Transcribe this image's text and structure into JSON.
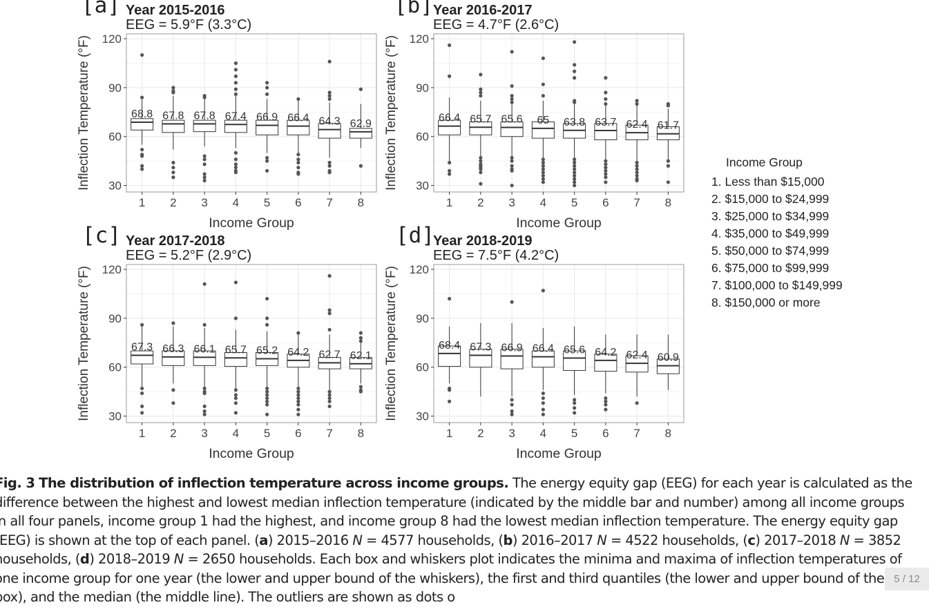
{
  "chart_data": [
    {
      "type": "box",
      "panel_label": "[a]",
      "title": "Year 2015-2016",
      "subtitle": "EEG = 5.9°F (3.3°C)",
      "xlabel": "Income Group",
      "ylabel": "Inflection Temperature (°F)",
      "ylim": [
        26,
        123
      ],
      "yticks": [
        30,
        60,
        90,
        120
      ],
      "categories": [
        "1",
        "2",
        "3",
        "4",
        "5",
        "6",
        "7",
        "8"
      ],
      "grid": true,
      "medians": [
        68.8,
        67.8,
        67.8,
        67.4,
        66.9,
        66.4,
        64.3,
        62.9
      ],
      "median_labels": [
        "68.8",
        "67.8",
        "67.8",
        "67.4",
        "66.9",
        "66.4",
        "64.3",
        "62.9"
      ],
      "boxes": [
        {
          "min": 55,
          "q1": 64,
          "q3": 71,
          "max": 84,
          "outliers": [
            110,
            84,
            52,
            49,
            48,
            42,
            40
          ]
        },
        {
          "min": 52,
          "q1": 62.5,
          "q3": 70,
          "max": 85,
          "outliers": [
            90,
            88,
            87,
            44,
            41,
            38,
            35
          ]
        },
        {
          "min": 54,
          "q1": 63,
          "q3": 70,
          "max": 84,
          "outliers": [
            85,
            84,
            48,
            46,
            43,
            37,
            35,
            33
          ]
        },
        {
          "min": 53,
          "q1": 62.5,
          "q3": 70,
          "max": 85,
          "outliers": [
            105,
            101,
            97,
            93,
            89,
            86,
            50,
            46,
            43,
            41,
            39,
            38
          ]
        },
        {
          "min": 50,
          "q1": 61,
          "q3": 70,
          "max": 83,
          "outliers": [
            93,
            90,
            86,
            47,
            45,
            39
          ]
        },
        {
          "min": 50,
          "q1": 61,
          "q3": 70,
          "max": 82,
          "outliers": [
            83,
            49,
            46,
            44,
            41,
            38,
            37
          ]
        },
        {
          "min": 47,
          "q1": 59,
          "q3": 68,
          "max": 81,
          "outliers": [
            106,
            87,
            85,
            83,
            44,
            42,
            39,
            38
          ]
        },
        {
          "min": 53,
          "q1": 59,
          "q3": 65,
          "max": 80,
          "outliers": [
            89,
            42
          ]
        }
      ]
    },
    {
      "type": "box",
      "panel_label": "[b]",
      "title": "Year 2016-2017",
      "subtitle": "EEG = 4.7°F (2.6°C)",
      "xlabel": "Income Group",
      "ylabel": "Inflection Temperature (°F)",
      "ylim": [
        26,
        123
      ],
      "yticks": [
        30,
        60,
        90,
        120
      ],
      "categories": [
        "1",
        "2",
        "3",
        "4",
        "5",
        "6",
        "7",
        "8"
      ],
      "grid": true,
      "medians": [
        66.4,
        65.7,
        65.6,
        65,
        63.8,
        63.7,
        62.4,
        61.7
      ],
      "median_labels": [
        "66.4",
        "65.7",
        "65.6",
        "65",
        "63.8",
        "63.7",
        "62.4",
        "61.7"
      ],
      "boxes": [
        {
          "min": 45,
          "q1": 61,
          "q3": 70,
          "max": 84,
          "outliers": [
            116,
            97,
            44,
            39,
            37
          ]
        },
        {
          "min": 48,
          "q1": 61,
          "q3": 69,
          "max": 82,
          "outliers": [
            98,
            89,
            87,
            85,
            47,
            45,
            43,
            42,
            41,
            40,
            38,
            31
          ]
        },
        {
          "min": 47,
          "q1": 60,
          "q3": 69,
          "max": 82,
          "outliers": [
            112,
            91,
            85,
            83,
            81,
            47,
            45,
            42,
            40,
            39,
            30
          ]
        },
        {
          "min": 46,
          "q1": 59,
          "q3": 69,
          "max": 82,
          "outliers": [
            108,
            92,
            85,
            46,
            44,
            42,
            40,
            38,
            36,
            34,
            32
          ]
        },
        {
          "min": 46,
          "q1": 59,
          "q3": 68,
          "max": 80,
          "outliers": [
            118,
            104,
            100,
            96,
            82,
            81,
            46,
            44,
            42,
            40,
            38,
            36,
            34,
            32,
            30
          ]
        },
        {
          "min": 45,
          "q1": 58,
          "q3": 68,
          "max": 80,
          "outliers": [
            96,
            87,
            83,
            80,
            45,
            43,
            41,
            39,
            37,
            35,
            32
          ]
        },
        {
          "min": 44,
          "q1": 58,
          "q3": 67,
          "max": 80,
          "outliers": [
            82,
            80,
            44,
            42,
            40,
            38,
            36,
            34,
            33
          ]
        },
        {
          "min": 45,
          "q1": 58,
          "q3": 66,
          "max": 77,
          "outliers": [
            80,
            79,
            45,
            42,
            32
          ]
        }
      ]
    },
    {
      "type": "box",
      "panel_label": "[c]",
      "title": "Year 2017-2018",
      "subtitle": "EEG = 5.2°F (2.9°C)",
      "xlabel": "Income Group",
      "ylabel": "Inflection Temperature (°F)",
      "ylim": [
        26,
        123
      ],
      "yticks": [
        30,
        60,
        90,
        120
      ],
      "categories": [
        "1",
        "2",
        "3",
        "4",
        "5",
        "6",
        "7",
        "8"
      ],
      "grid": true,
      "medians": [
        67.3,
        66.3,
        66.1,
        65.7,
        65.2,
        64.2,
        62.7,
        62.1
      ],
      "median_labels": [
        "67.3",
        "66.3",
        "66.1",
        "65.7",
        "65.2",
        "64.2",
        "62.7",
        "62.1"
      ],
      "boxes": [
        {
          "min": 48,
          "q1": 62,
          "q3": 70,
          "max": 85,
          "outliers": [
            86,
            47,
            44,
            36,
            32
          ]
        },
        {
          "min": 50,
          "q1": 61,
          "q3": 70,
          "max": 85,
          "outliers": [
            87,
            46,
            38
          ]
        },
        {
          "min": 48,
          "q1": 61,
          "q3": 70,
          "max": 84,
          "outliers": [
            111,
            86,
            47,
            45,
            44,
            36,
            33,
            31
          ]
        },
        {
          "min": 47,
          "q1": 60.5,
          "q3": 69,
          "max": 83,
          "outliers": [
            112,
            90,
            46,
            43,
            41,
            38,
            32
          ]
        },
        {
          "min": 47,
          "q1": 61,
          "q3": 69,
          "max": 82,
          "outliers": [
            102,
            90,
            86,
            47,
            45,
            43,
            41,
            39,
            37,
            31
          ]
        },
        {
          "min": 48,
          "q1": 60,
          "q3": 68,
          "max": 80,
          "outliers": [
            81,
            47,
            45,
            43,
            41,
            39,
            37,
            34,
            31
          ]
        },
        {
          "min": 46,
          "q1": 59,
          "q3": 66,
          "max": 80,
          "outliers": [
            116,
            95,
            93,
            83,
            45,
            43,
            41,
            39,
            36
          ]
        },
        {
          "min": 50,
          "q1": 59,
          "q3": 66,
          "max": 75,
          "outliers": [
            81,
            78,
            76,
            48,
            46,
            45
          ]
        }
      ]
    },
    {
      "type": "box",
      "panel_label": "[d]",
      "title": "Year 2018-2019",
      "subtitle": "EEG = 7.5°F (4.2°C)",
      "xlabel": "Income Group",
      "ylabel": "Inflection Temperature (°F)",
      "ylim": [
        26,
        123
      ],
      "yticks": [
        30,
        60,
        90,
        120
      ],
      "categories": [
        "1",
        "2",
        "3",
        "4",
        "5",
        "6",
        "7",
        "8"
      ],
      "grid": true,
      "medians": [
        68.4,
        67.3,
        66.9,
        66.4,
        65.6,
        64.2,
        62.4,
        60.9
      ],
      "median_labels": [
        "68.4",
        "67.3",
        "66.9",
        "66.4",
        "65.6",
        "64.2",
        "62.4",
        "60.9"
      ],
      "boxes": [
        {
          "min": 50,
          "q1": 60.5,
          "q3": 73,
          "max": 85,
          "outliers": [
            102,
            47,
            46,
            39
          ]
        },
        {
          "min": 42,
          "q1": 60,
          "q3": 71,
          "max": 87,
          "outliers": []
        },
        {
          "min": 42,
          "q1": 59,
          "q3": 71,
          "max": 87,
          "outliers": [
            100,
            40,
            37,
            33,
            31
          ]
        },
        {
          "min": 46,
          "q1": 60,
          "q3": 70,
          "max": 84,
          "outliers": [
            107,
            44,
            41,
            38,
            34,
            31
          ]
        },
        {
          "min": 43,
          "q1": 58,
          "q3": 70,
          "max": 85,
          "outliers": [
            40,
            38,
            35,
            32
          ]
        },
        {
          "min": 44,
          "q1": 57.5,
          "q3": 68,
          "max": 80,
          "outliers": [
            41,
            39,
            37,
            34
          ]
        },
        {
          "min": 42,
          "q1": 57,
          "q3": 67,
          "max": 80,
          "outliers": [
            38
          ]
        },
        {
          "min": 46,
          "q1": 56,
          "q3": 65,
          "max": 80,
          "outliers": []
        }
      ]
    }
  ],
  "legend": {
    "title": "Income Group",
    "items": [
      "1. Less than $15,000",
      "2. $15,000 to $24,999",
      "3. $25,000 to $34,999",
      "4. $35,000 to $49,999",
      "5. $50,000 to $74,999",
      "6. $75,000 to $99,999",
      "7. $100,000 to $149,999",
      "8. $150,000 or more"
    ]
  },
  "caption": {
    "fig_label": "Fig. 3",
    "fig_title": "The distribution of inflection temperature across income groups.",
    "s1": "The energy equity gap (EEG) for each year is calculated as the difference between the highest and lowest median inflection temperature (indicated by the middle bar and number) among all income groups in all four panels, income group 1 had the highest, and income group 8 had the lowest median inflection temperature. The energy equity gap (EEG) is shown at the top of each panel. (",
    "a": "a",
    "s2": ") 2015–2016 ",
    "n": "N",
    "s3": " = 4577 households, (",
    "b": "b",
    "s4": ") 2016–2017 ",
    "s5": " = 4522 households, (",
    "c": "c",
    "s6": ") 2017–2018 ",
    "s7": " = 3852 households, (",
    "d": "d",
    "s8": ") 2018–2019 ",
    "s9": " = 2650 households. Each box and whiskers plot indicates the minima and maxima of inflection temperatures of one income group for one year (the lower and upper bound of the whiskers), the first and third quantiles (the lower and upper bound of the box), and the median (the middle line). The outliers are shown as dots o"
  },
  "pager": "5 / 12",
  "colors": {
    "box_line": "#333333",
    "outlier": "#555555",
    "grid": "#ebebeb",
    "panel_border": "#999999",
    "text": "#333333"
  }
}
